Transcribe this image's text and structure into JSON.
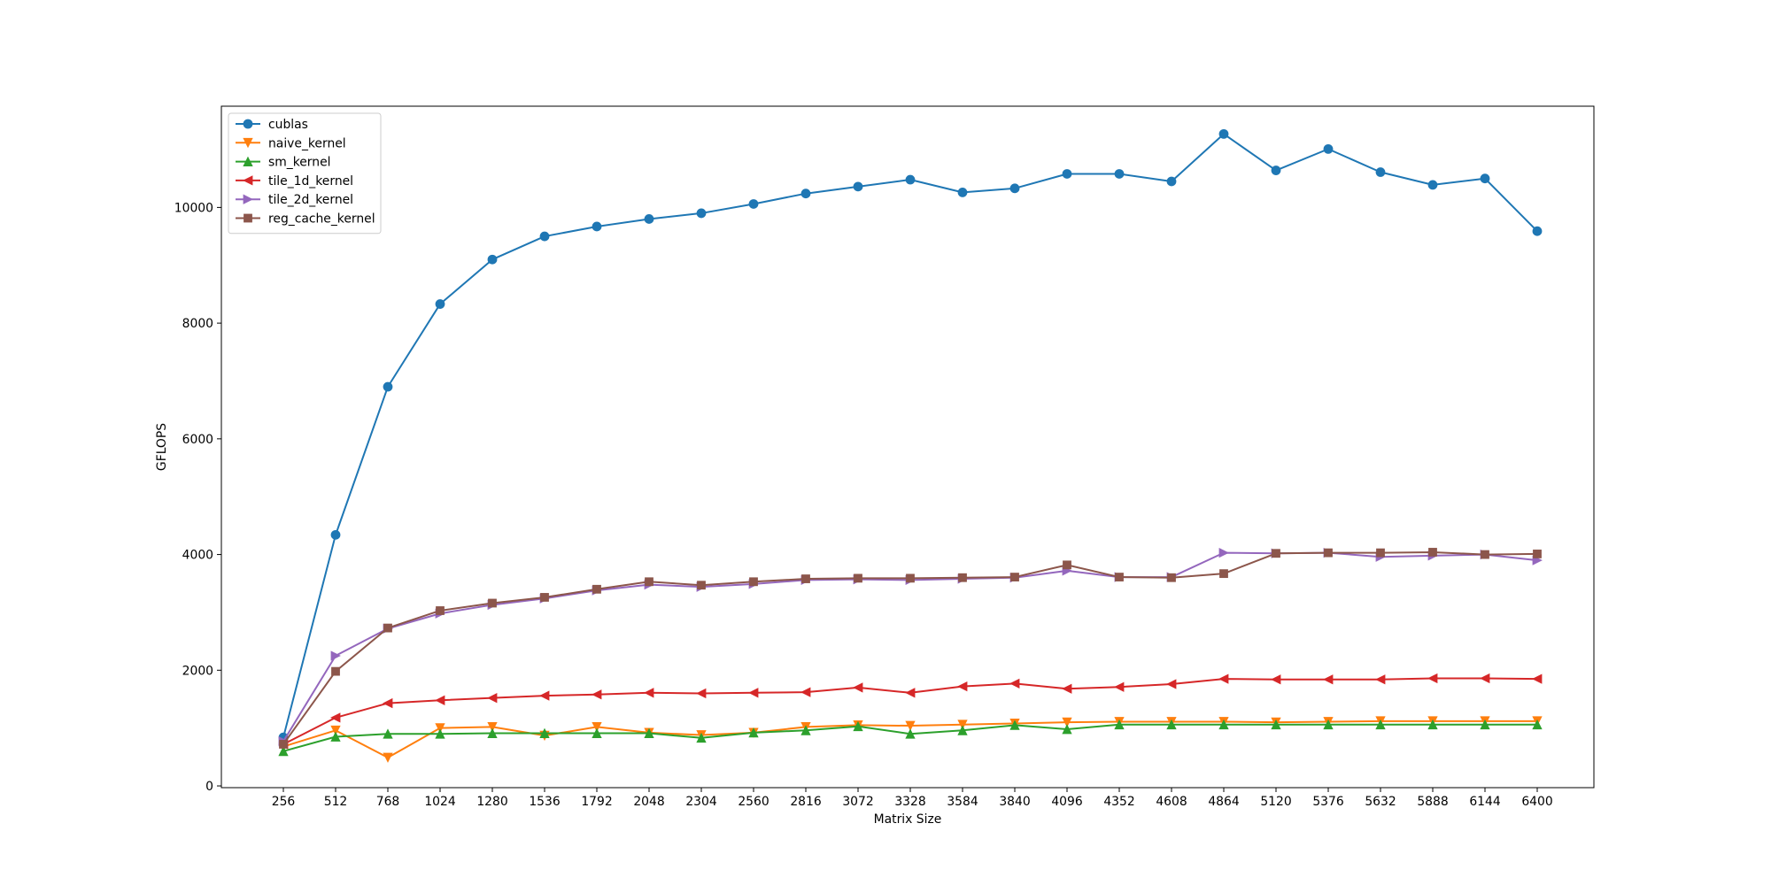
{
  "chart_data": {
    "type": "line",
    "title": "",
    "xlabel": "Matrix Size",
    "ylabel": "GFLOPS",
    "x": [
      256,
      512,
      768,
      1024,
      1280,
      1536,
      1792,
      2048,
      2304,
      2560,
      2816,
      3072,
      3328,
      3584,
      3840,
      4096,
      4352,
      4608,
      4864,
      5120,
      5376,
      5632,
      5888,
      6144,
      6400
    ],
    "x_tick_labels": [
      "256",
      "512",
      "768",
      "1024",
      "1280",
      "1536",
      "1792",
      "2048",
      "2304",
      "2560",
      "2816",
      "3072",
      "3328",
      "3584",
      "3840",
      "4096",
      "4352",
      "4608",
      "4864",
      "5120",
      "5376",
      "5632",
      "5888",
      "6144",
      "6400"
    ],
    "ylim": [
      -30,
      11750
    ],
    "y_ticks": [
      0,
      2000,
      4000,
      6000,
      8000,
      10000
    ],
    "y_tick_labels": [
      "0",
      "2000",
      "4000",
      "6000",
      "8000",
      "10000"
    ],
    "grid": false,
    "legend_position": "top-left",
    "series": [
      {
        "name": "cublas",
        "color": "#1f77b4",
        "marker": "circle",
        "values": [
          840,
          4340,
          6900,
          8330,
          9100,
          9500,
          9670,
          9800,
          9900,
          10060,
          10240,
          10360,
          10480,
          10260,
          10330,
          10580,
          10580,
          10450,
          11270,
          10640,
          11010,
          10610,
          10390,
          10500,
          9590
        ]
      },
      {
        "name": "naive_kernel",
        "color": "#ff7f0e",
        "marker": "triangle-down",
        "values": [
          680,
          960,
          490,
          1000,
          1020,
          870,
          1020,
          920,
          880,
          920,
          1020,
          1050,
          1040,
          1060,
          1080,
          1100,
          1110,
          1110,
          1110,
          1100,
          1110,
          1120,
          1120,
          1120,
          1120
        ]
      },
      {
        "name": "sm_kernel",
        "color": "#2ca02c",
        "marker": "triangle-up",
        "values": [
          600,
          850,
          900,
          900,
          910,
          910,
          910,
          910,
          830,
          920,
          960,
          1030,
          900,
          960,
          1050,
          980,
          1060,
          1060,
          1060,
          1060,
          1060,
          1060,
          1060,
          1060,
          1060
        ]
      },
      {
        "name": "tile_1d_kernel",
        "color": "#d62728",
        "marker": "triangle-left",
        "values": [
          720,
          1180,
          1430,
          1480,
          1520,
          1560,
          1580,
          1610,
          1600,
          1610,
          1620,
          1700,
          1610,
          1720,
          1770,
          1680,
          1710,
          1760,
          1850,
          1840,
          1840,
          1840,
          1860,
          1860,
          1850
        ]
      },
      {
        "name": "tile_2d_kernel",
        "color": "#9467bd",
        "marker": "triangle-right",
        "values": [
          770,
          2250,
          2720,
          2980,
          3130,
          3240,
          3380,
          3480,
          3440,
          3490,
          3560,
          3570,
          3560,
          3580,
          3600,
          3720,
          3610,
          3610,
          4030,
          4020,
          4030,
          3960,
          3980,
          4000,
          3900
        ]
      },
      {
        "name": "reg_cache_kernel",
        "color": "#8c564b",
        "marker": "square",
        "values": [
          720,
          1980,
          2730,
          3030,
          3160,
          3260,
          3400,
          3530,
          3470,
          3530,
          3580,
          3590,
          3590,
          3600,
          3610,
          3820,
          3610,
          3600,
          3670,
          4020,
          4030,
          4030,
          4040,
          4000,
          4010
        ]
      }
    ]
  }
}
